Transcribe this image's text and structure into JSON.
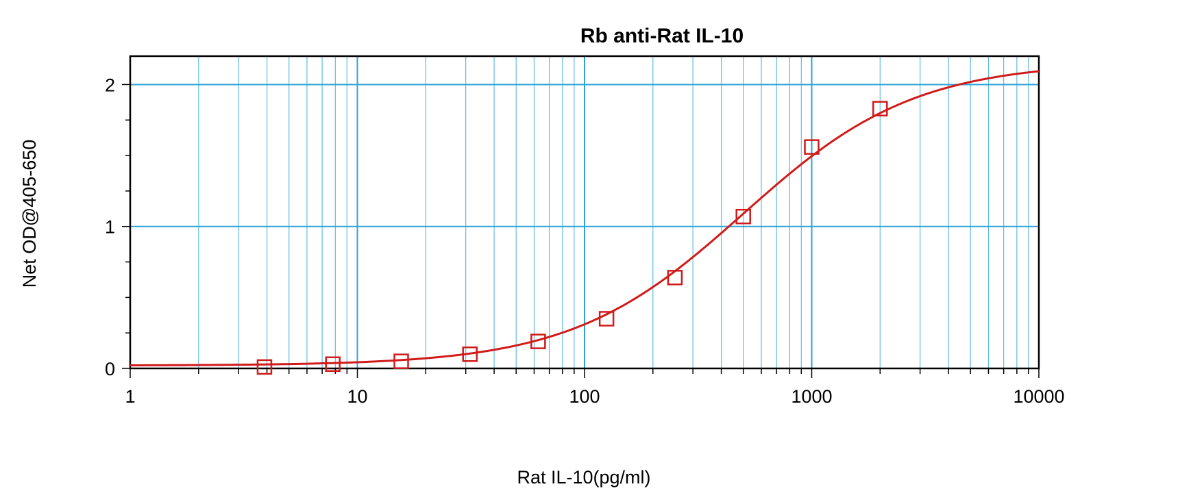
{
  "chart_data": {
    "type": "scatter",
    "title": "Rb anti-Rat IL-10",
    "xlabel": "Rat IL-10(pg/ml)",
    "ylabel": "Net OD@405-650",
    "xscale": "log",
    "xlim": [
      1,
      10000
    ],
    "ylim": [
      0,
      2.2
    ],
    "x_ticks": [
      1,
      10,
      100,
      1000,
      10000
    ],
    "x_tick_labels": [
      "1",
      "10",
      "100",
      "1000",
      "10000"
    ],
    "y_ticks": [
      0,
      1,
      2
    ],
    "y_tick_labels": [
      "0",
      "1",
      "2"
    ],
    "grid": true,
    "legend": "none",
    "series": [
      {
        "kind": "points",
        "marker": "open-square",
        "x": [
          3.9,
          7.8,
          15.6,
          31.3,
          62.5,
          125,
          250,
          500,
          1000,
          2000
        ],
        "y": [
          0.01,
          0.03,
          0.05,
          0.1,
          0.19,
          0.35,
          0.64,
          1.07,
          1.56,
          1.83
        ]
      },
      {
        "kind": "fit-curve",
        "model": "4-parameter logistic",
        "bottom": 0.02,
        "top": 2.16,
        "ec50": 500,
        "hill": 1.15
      }
    ],
    "colors": {
      "grid_major": "#2ea3d6",
      "grid_minor": "#5fbde3",
      "data": "#d11a1a",
      "axes": "#000000"
    }
  }
}
